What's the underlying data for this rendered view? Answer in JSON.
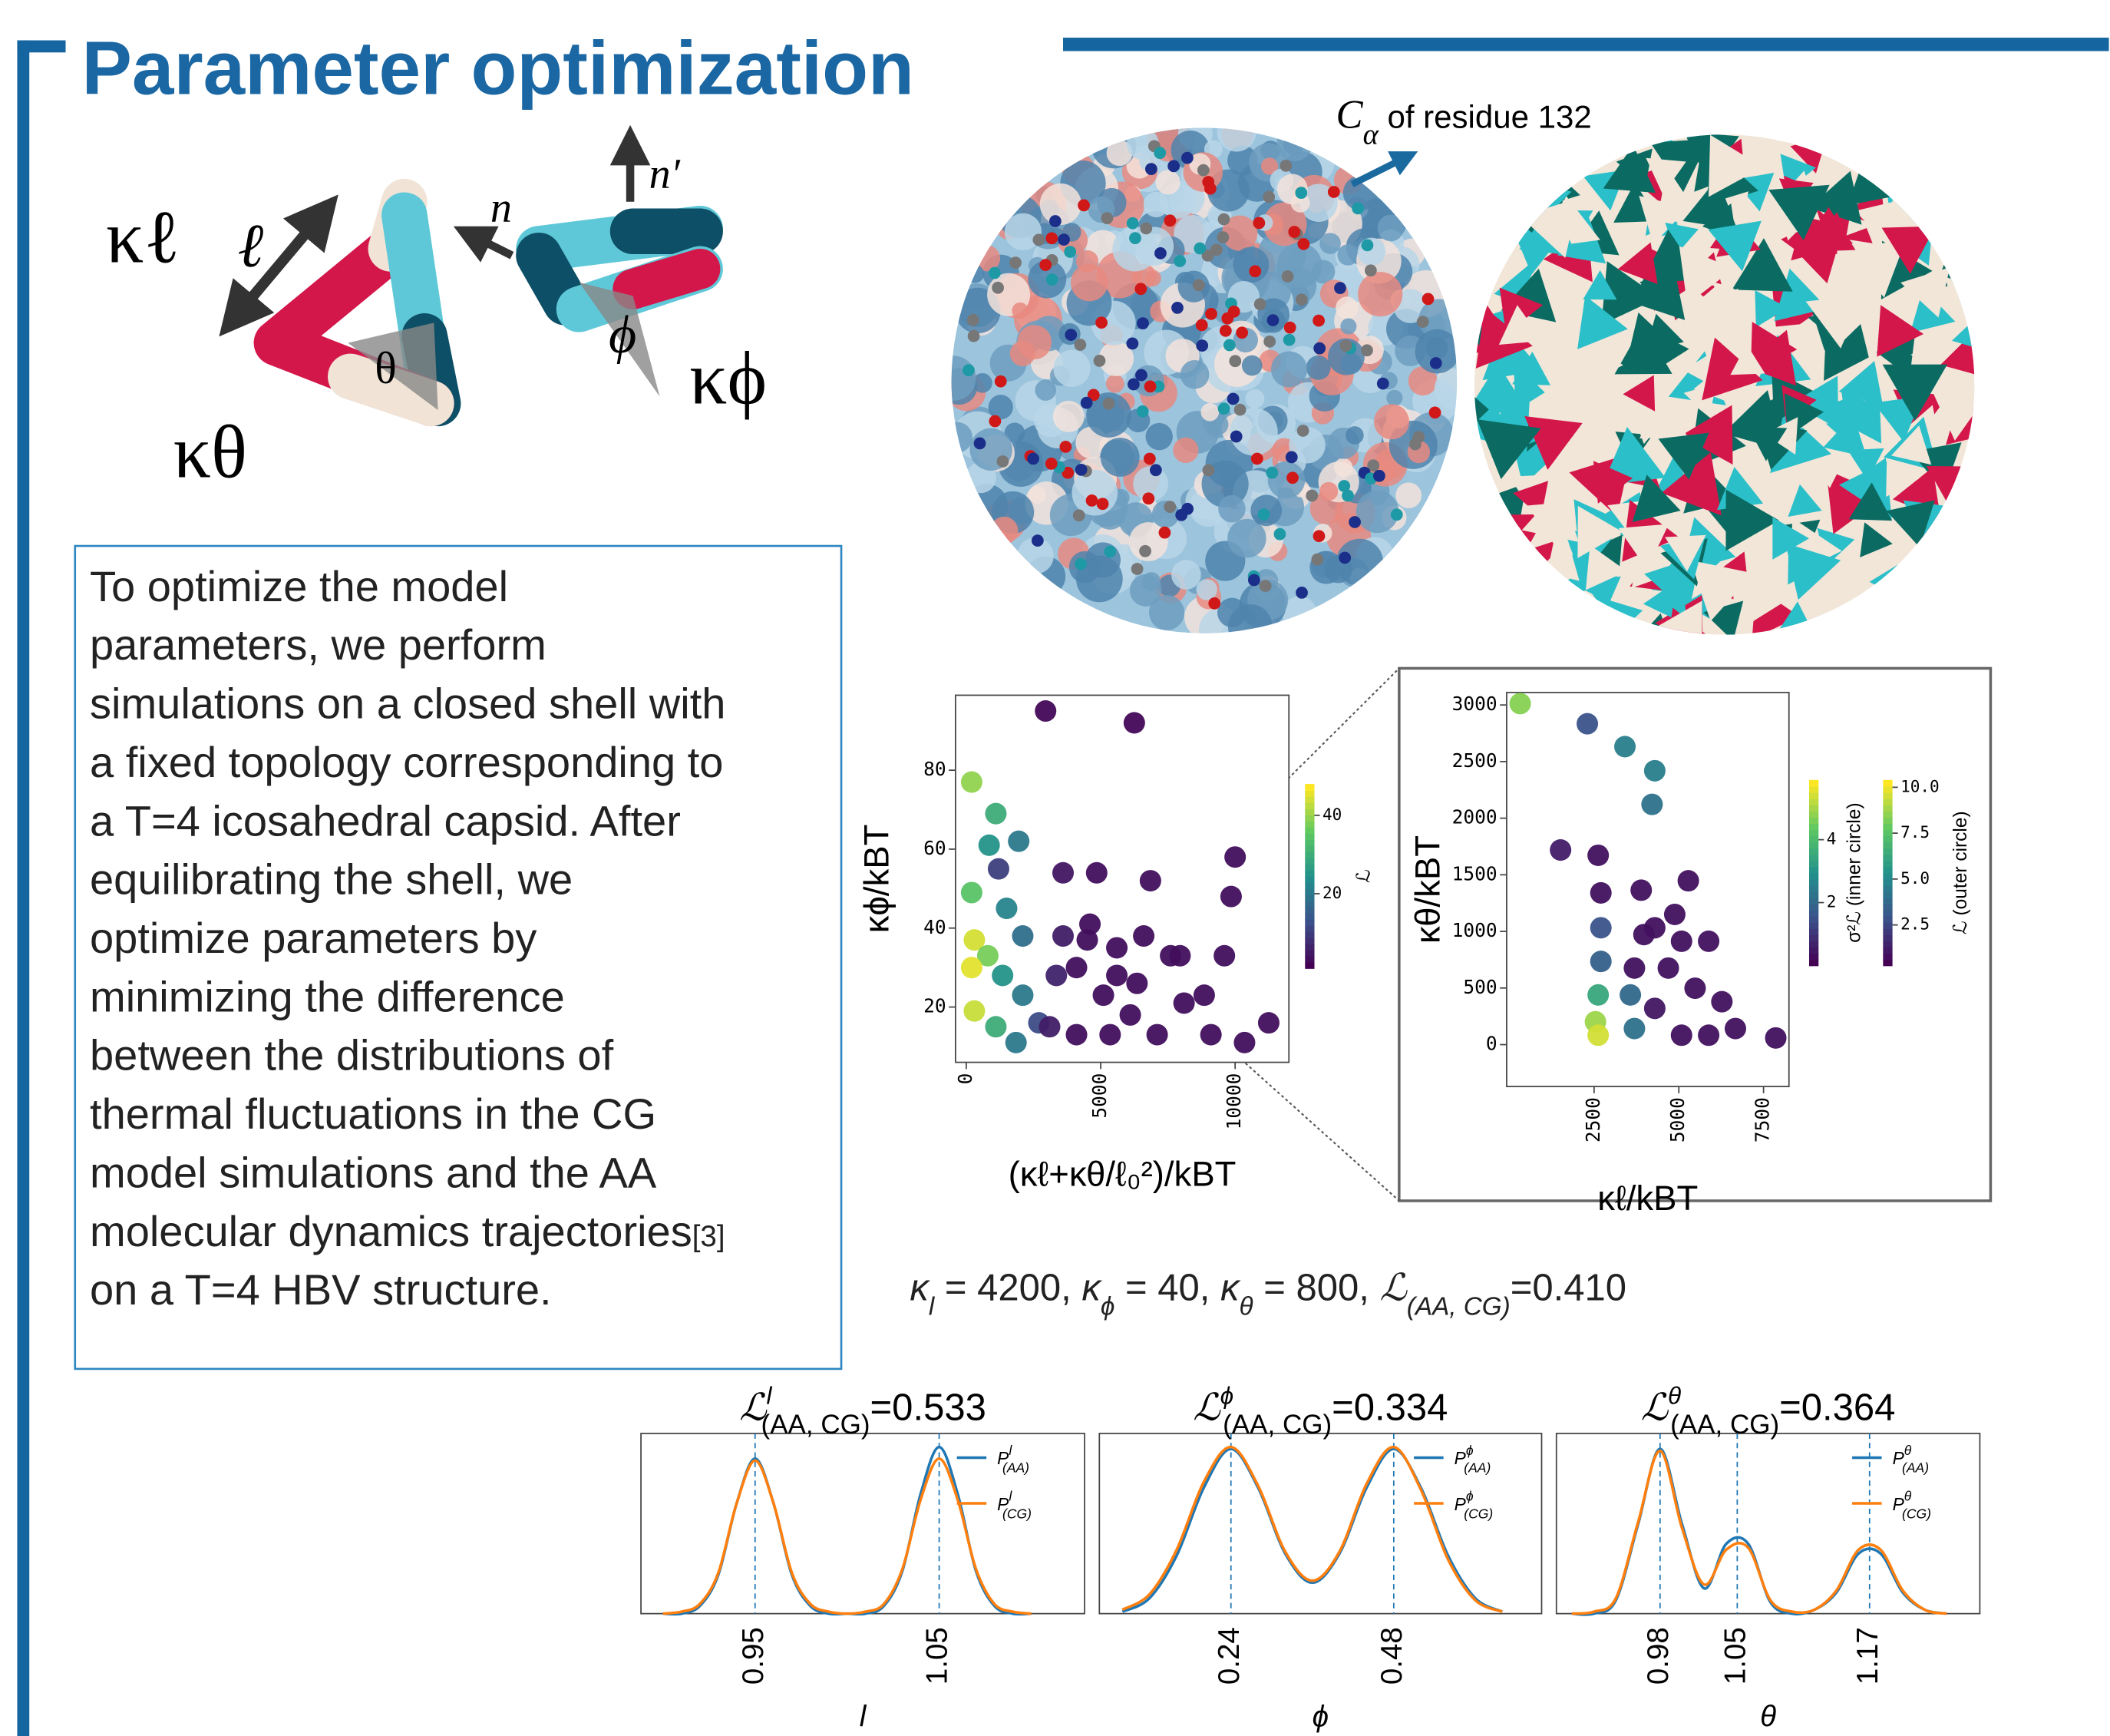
{
  "header": {
    "title": "Parameter optimization"
  },
  "diagram_labels": {
    "k_l": "κℓ",
    "l": "ℓ",
    "theta": "θ",
    "k_theta": "κθ",
    "n": "n",
    "n_prime": "n′",
    "phi": "ϕ",
    "k_phi": "κϕ"
  },
  "annotation": {
    "symbol": "C",
    "sub": "α",
    "text": " of residue 132"
  },
  "body": {
    "lines": [
      "To optimize the model",
      "parameters, we perform",
      "simulations on a closed shell with",
      "a fixed topology corresponding to",
      "a T=4 icosahedral capsid. After",
      "equilibrating the shell, we",
      "optimize parameters by",
      "minimizing the difference",
      "between the distributions of",
      "thermal fluctuations in the CG",
      "model simulations and the AA",
      "molecular dynamics trajectories",
      "on a T=4 HBV structure."
    ],
    "citation": "[3]"
  },
  "parameters": [
    {
      "symbol": "κ",
      "sub": "l",
      "rest": " = 4200, "
    },
    {
      "symbol": "κ",
      "sub": "ϕ",
      "rest": " = 40, "
    },
    {
      "symbol": "κ",
      "sub": "θ",
      "rest": " = 800, "
    },
    {
      "symbol": "ℒ",
      "sub": "(AA, CG)",
      "rest": "=0.410"
    }
  ],
  "charts": [
    {
      "type": "scatter",
      "xlabel": "(κℓ+κθ/ℓ₀²)/kBT",
      "ylabel": "κϕ/kBT",
      "x": [
        2950,
        6250,
        200,
        1100,
        850,
        1950,
        1200,
        200,
        1500,
        2100,
        300,
        800,
        200,
        1350,
        2100,
        300,
        1100,
        1850,
        2700,
        3600,
        4600,
        5600,
        6600,
        7600,
        4100,
        5100,
        6100,
        7100,
        8100,
        9100,
        9600,
        7950,
        8850,
        10000,
        9850,
        11250,
        10350,
        6850,
        3600,
        4850,
        3100,
        4100,
        5600,
        6350,
        5350,
        4500,
        3350
      ],
      "y": [
        95,
        92,
        77,
        69,
        61,
        62,
        55,
        49,
        45,
        38,
        37,
        33,
        30,
        28,
        23,
        19,
        15,
        11,
        16,
        38,
        41,
        35,
        38,
        33,
        30,
        23,
        18,
        13,
        21,
        13,
        33,
        33,
        23,
        58,
        48,
        16,
        11,
        52,
        54,
        54,
        15,
        13,
        28,
        26,
        13,
        37,
        28
      ],
      "c": [
        2,
        2,
        40,
        30,
        25,
        20,
        10,
        35,
        22,
        18,
        45,
        38,
        46,
        25,
        20,
        44,
        30,
        20,
        12,
        5,
        3,
        3,
        3,
        3,
        3,
        3,
        3,
        3,
        3,
        3,
        3,
        3,
        3,
        3,
        3,
        3,
        3,
        3,
        4,
        3,
        5,
        3,
        3,
        3,
        3,
        3,
        6
      ],
      "xlim": [
        -400,
        12000
      ],
      "xticks": [
        0,
        5000,
        10000
      ],
      "ylim": [
        6,
        99
      ],
      "yticks": [
        20,
        40,
        60,
        80
      ],
      "colorbars": [
        {
          "label": "ℒ",
          "clim": [
            1,
            48
          ],
          "ticks": [
            20,
            40
          ]
        }
      ]
    },
    {
      "type": "scatter",
      "xlabel": "κℓ/kBT",
      "ylabel": "κθ/kBT",
      "x": [
        318,
        2300,
        3410,
        4290,
        4210,
        1510,
        2620,
        2700,
        3890,
        3970,
        5080,
        5880,
        2700,
        2700,
        2620,
        2540,
        2620,
        3570,
        3690,
        4290,
        4690,
        5480,
        6270,
        6670,
        7860,
        5080,
        5880,
        4290,
        4880,
        5280,
        3690
      ],
      "y": [
        3012,
        2834,
        2632,
        2419,
        2122,
        1719,
        1672,
        1340,
        1364,
        972,
        913,
        913,
        1032,
        735,
        439,
        202,
        83,
        439,
        142,
        320,
        676,
        498,
        379,
        142,
        59,
        83,
        83,
        1032,
        1150,
        1447,
        676
      ],
      "c": [
        4.8,
        1.5,
        2.5,
        2.5,
        2.2,
        0.5,
        0.3,
        0.3,
        0.3,
        0.3,
        0.3,
        0.3,
        1.5,
        1.8,
        3.5,
        5,
        5.5,
        2,
        2.2,
        0.4,
        0.3,
        0.3,
        0.3,
        0.3,
        0.3,
        0.3,
        0.3,
        0.3,
        0.3,
        0.3,
        0.3
      ],
      "xlim": [
        -80,
        8250
      ],
      "xticks": [
        2500,
        5000,
        7500
      ],
      "ylim": [
        -370,
        3110
      ],
      "yticks": [
        0,
        500,
        1000,
        1500,
        2000,
        2500,
        3000
      ],
      "colorbars": [
        {
          "label": "σ²ℒ (inner circle)",
          "clim": [
            0,
            5.9
          ],
          "ticks": [
            2,
            4
          ]
        },
        {
          "label": "ℒ (outer circle)",
          "clim": [
            0.29,
            10.4
          ],
          "ticks": [
            2.5,
            {
              "value": 5,
              "label": "5.0"
            },
            7.5,
            {
              "value": 10,
              "label": "10.0"
            }
          ]
        }
      ]
    },
    {
      "type": "line",
      "title": {
        "symbol": "ℒ",
        "sup": "l",
        "sub": "(AA, CG)",
        "text": "=0.533"
      },
      "xlabel": "l",
      "x": [
        0.9,
        0.91,
        0.92,
        0.93,
        0.94,
        0.95,
        0.96,
        0.97,
        0.98,
        0.99,
        1.0,
        1.01,
        1.02,
        1.03,
        1.04,
        1.05,
        1.06,
        1.07,
        1.08,
        1.09,
        1.1
      ],
      "series": [
        {
          "name": "P",
          "name_sup": "l",
          "name_sub": "(AA)",
          "color": "#1f77b4",
          "values": [
            0,
            0,
            0.04,
            0.2,
            0.57,
            0.8,
            0.57,
            0.2,
            0.04,
            0,
            0,
            0,
            0.04,
            0.22,
            0.62,
            0.86,
            0.62,
            0.22,
            0.04,
            0,
            0
          ]
        },
        {
          "name": "P",
          "name_sup": "l",
          "name_sub": "(CG)",
          "color": "#ff7f0e",
          "values": [
            0,
            0.01,
            0.05,
            0.21,
            0.57,
            0.79,
            0.57,
            0.21,
            0.05,
            0.01,
            0,
            0.01,
            0.05,
            0.23,
            0.59,
            0.8,
            0.59,
            0.23,
            0.05,
            0.01,
            0
          ]
        }
      ],
      "xlim": [
        0.888,
        1.129
      ],
      "xticks": [
        0.95,
        1.05
      ],
      "ylim": [
        0,
        0.93
      ]
    },
    {
      "type": "line",
      "title": {
        "symbol": "ℒ",
        "sup": "ϕ",
        "sub": "(AA, CG)",
        "text": "=0.334"
      },
      "xlabel": "ϕ",
      "x": [
        0.08,
        0.12,
        0.16,
        0.2,
        0.24,
        0.28,
        0.32,
        0.36,
        0.4,
        0.44,
        0.48,
        0.52,
        0.56,
        0.6,
        0.64
      ],
      "series": [
        {
          "name": "P",
          "name_sup": "ϕ",
          "name_sub": "(AA)",
          "color": "#1f77b4",
          "values": [
            0.01,
            0.08,
            0.3,
            0.65,
            0.85,
            0.65,
            0.31,
            0.16,
            0.31,
            0.65,
            0.85,
            0.65,
            0.3,
            0.08,
            0.01
          ]
        },
        {
          "name": "P",
          "name_sup": "ϕ",
          "name_sub": "(CG)",
          "color": "#ff7f0e",
          "values": [
            0.02,
            0.1,
            0.33,
            0.68,
            0.86,
            0.66,
            0.32,
            0.17,
            0.32,
            0.67,
            0.86,
            0.64,
            0.28,
            0.07,
            0.01
          ]
        }
      ],
      "xlim": [
        0.046,
        0.698
      ],
      "xticks": [
        0.24,
        0.48
      ],
      "ylim": [
        0,
        0.93
      ]
    },
    {
      "type": "line",
      "title": {
        "symbol": "ℒ",
        "sup": "θ",
        "sub": "(AA, CG)",
        "text": "=0.364"
      },
      "xlabel": "θ",
      "x": [
        0.9,
        0.92,
        0.94,
        0.96,
        0.98,
        1.0,
        1.02,
        1.04,
        1.06,
        1.08,
        1.1,
        1.12,
        1.14,
        1.16,
        1.18,
        1.2,
        1.22,
        1.24
      ],
      "series": [
        {
          "name": "P",
          "name_sup": "θ",
          "name_sub": "(AA)",
          "color": "#1f77b4",
          "values": [
            0,
            0,
            0.07,
            0.46,
            0.85,
            0.46,
            0.13,
            0.36,
            0.36,
            0.06,
            0,
            0.02,
            0.11,
            0.31,
            0.31,
            0.11,
            0.02,
            0
          ]
        },
        {
          "name": "P",
          "name_sup": "θ",
          "name_sub": "(CG)",
          "color": "#ff7f0e",
          "values": [
            0,
            0.01,
            0.08,
            0.47,
            0.84,
            0.44,
            0.15,
            0.33,
            0.34,
            0.07,
            0.01,
            0.02,
            0.12,
            0.33,
            0.33,
            0.12,
            0.02,
            0
          ]
        }
      ],
      "xlim": [
        0.886,
        1.27
      ],
      "xticks": [
        0.98,
        1.05,
        1.17
      ],
      "ylim": [
        0,
        0.93
      ]
    }
  ]
}
